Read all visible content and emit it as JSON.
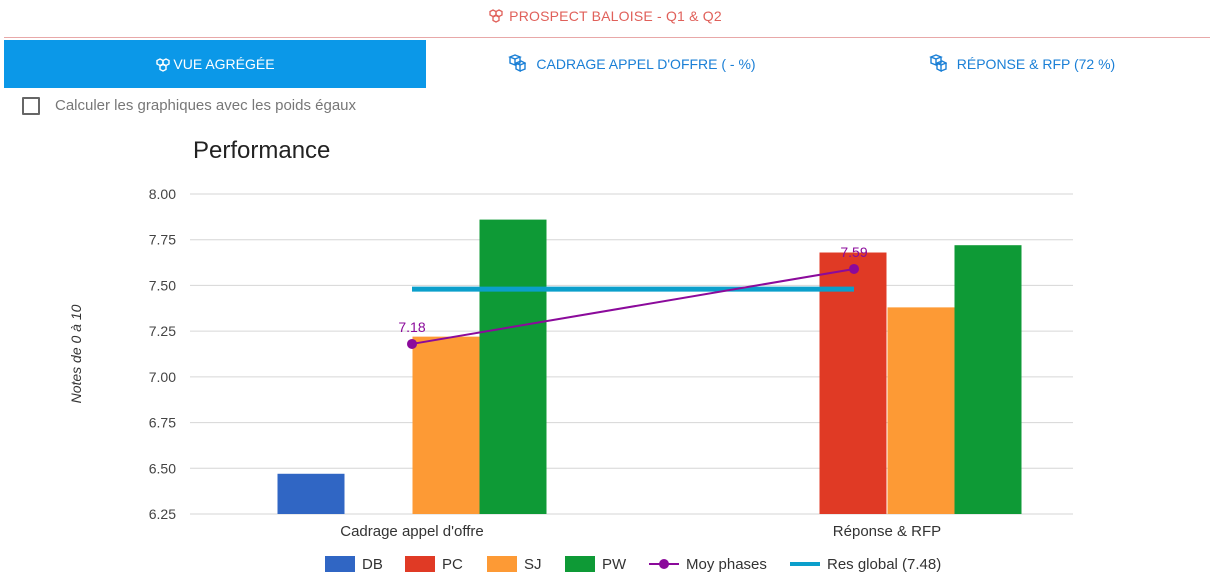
{
  "header": {
    "title": "PROSPECT BALOISE - Q1 & Q2",
    "icon": "cubes-icon"
  },
  "tabs": [
    {
      "label": "VUE AGRÉGÉE",
      "icon": "cubes-icon",
      "active": true
    },
    {
      "label": "CADRAGE APPEL D'OFFRE ( - %)",
      "icon": "cube-icon",
      "active": false
    },
    {
      "label": "RÉPONSE & RFP (72 %)",
      "icon": "cube-icon",
      "active": false
    }
  ],
  "options": {
    "equal_weights_label": "Calculer les graphiques avec les poids égaux",
    "equal_weights_checked": false
  },
  "colors": {
    "accent": "#0b98e8",
    "title_red": "#e0605a",
    "DB": "#3066c4",
    "PC": "#e03a25",
    "SJ": "#fd9a35",
    "PW": "#0e9a36",
    "moy": "#8b0a9b",
    "res": "#0b9fcb"
  },
  "chart_data": {
    "type": "bar",
    "title": "Performance",
    "xlabel": "",
    "ylabel": "Notes de 0 à 10",
    "ylim": [
      6.25,
      8.0
    ],
    "yticks": [
      "6.25",
      "6.50",
      "6.75",
      "7.00",
      "7.25",
      "7.50",
      "7.75",
      "8.00"
    ],
    "categories": [
      "Cadrage appel d'offre",
      "Réponse & RFP"
    ],
    "series": [
      {
        "name": "DB",
        "values": [
          6.47,
          null
        ]
      },
      {
        "name": "PC",
        "values": [
          null,
          7.68
        ]
      },
      {
        "name": "SJ",
        "values": [
          7.22,
          7.38
        ]
      },
      {
        "name": "PW",
        "values": [
          7.86,
          7.72
        ]
      }
    ],
    "line": {
      "name": "Moy phases",
      "values": [
        7.18,
        7.59
      ],
      "labels": [
        "7.18",
        "7.59"
      ]
    },
    "reference": {
      "name": "Res global (7.48)",
      "value": 7.48
    },
    "grid": true,
    "legend": "bottom"
  }
}
